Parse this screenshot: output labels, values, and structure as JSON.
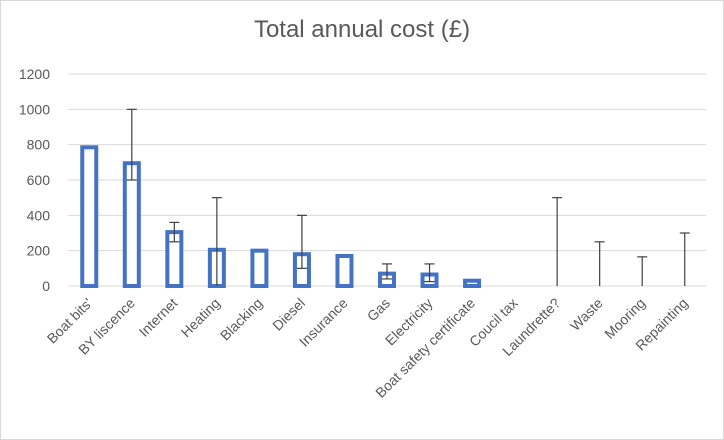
{
  "chart_data": {
    "type": "bar",
    "title": "Total annual cost (£)",
    "xlabel": "",
    "ylabel": "",
    "ylim": [
      0,
      1200
    ],
    "yticks": [
      0,
      200,
      400,
      600,
      800,
      1000,
      1200
    ],
    "grid": true,
    "legend": "none",
    "bar_color": "#4472c4",
    "bar_fill": "#ffffff",
    "grid_color": "#d9d9d9",
    "error_bar_color": "#404040",
    "categories": [
      "Boat bits'",
      "BY liscence",
      "Internet",
      "Heating",
      "Blacking",
      "Diesel",
      "Insurance",
      "Gas",
      "Electricity",
      "Boat safety certificate",
      "Coucil tax",
      "Laundrette?",
      "Waste",
      "Mooring",
      "Repainting"
    ],
    "values": [
      785,
      695,
      305,
      205,
      200,
      180,
      170,
      70,
      65,
      30,
      0,
      0,
      0,
      0,
      0
    ],
    "error_low": [
      785,
      600,
      250,
      0,
      200,
      100,
      170,
      40,
      25,
      30,
      0,
      0,
      0,
      0,
      0
    ],
    "error_high": [
      785,
      1000,
      360,
      500,
      200,
      400,
      170,
      125,
      125,
      30,
      0,
      500,
      250,
      165,
      300
    ]
  }
}
